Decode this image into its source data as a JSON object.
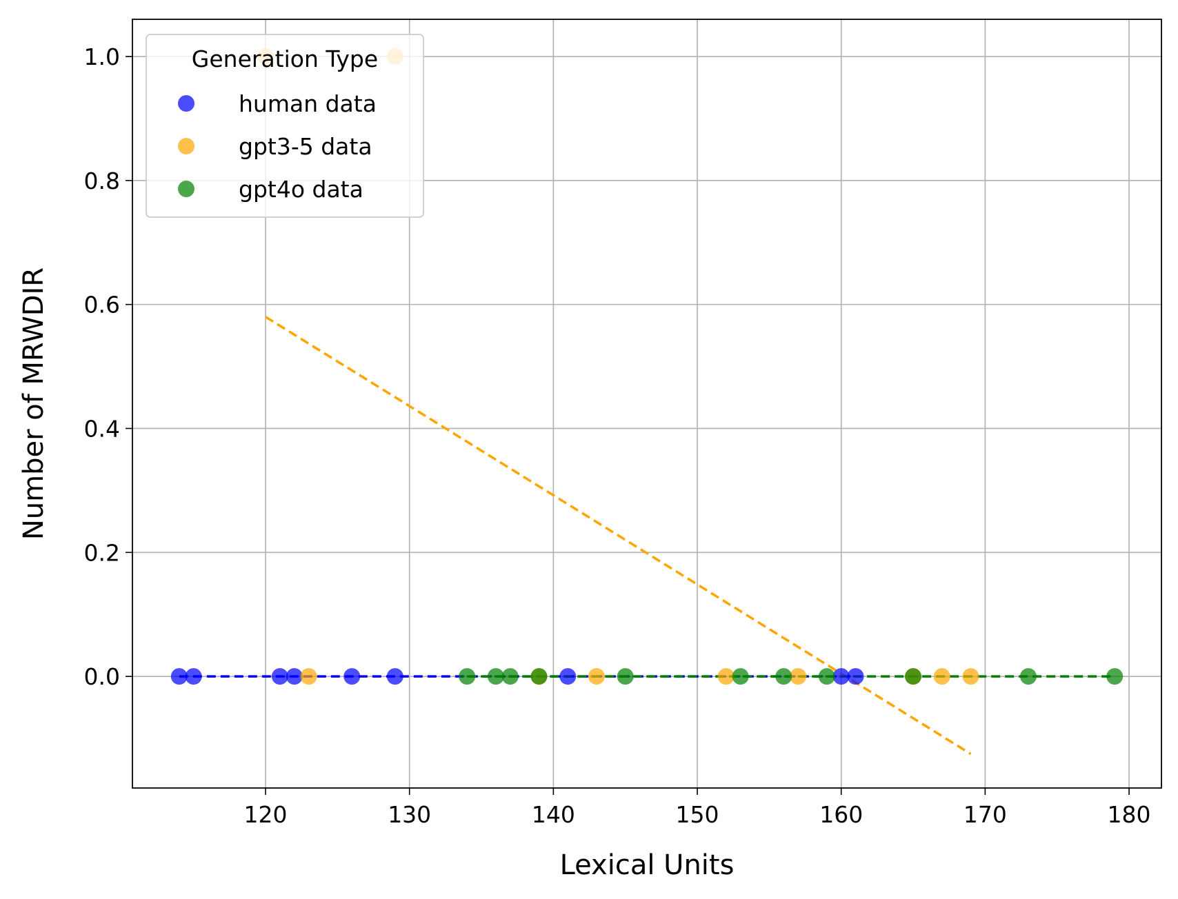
{
  "chart_data": {
    "type": "scatter",
    "title": "",
    "xlabel": "Lexical Units",
    "ylabel": "Number of MRWDIR",
    "xlim": [
      110.75,
      182.25
    ],
    "ylim": [
      -0.18,
      1.06
    ],
    "xticks": [
      120,
      130,
      140,
      150,
      160,
      170,
      180
    ],
    "yticks": [
      0.0,
      0.2,
      0.4,
      0.6,
      0.8,
      1.0
    ],
    "xtick_labels": [
      "120",
      "130",
      "140",
      "150",
      "160",
      "170",
      "180"
    ],
    "ytick_labels": [
      "0.0",
      "0.2",
      "0.4",
      "0.6",
      "0.8",
      "1.0"
    ],
    "grid": true,
    "legend": {
      "title": "Generation Type",
      "placement": "top-left"
    },
    "series": [
      {
        "name": "human data",
        "color": "#0000ff",
        "points": [
          [
            114,
            0
          ],
          [
            115,
            0
          ],
          [
            121,
            0
          ],
          [
            122,
            0
          ],
          [
            126,
            0
          ],
          [
            129,
            0
          ],
          [
            141,
            0
          ],
          [
            160,
            0
          ],
          [
            161,
            0
          ]
        ],
        "trend": {
          "x": [
            114,
            161
          ],
          "y": [
            0,
            0
          ]
        }
      },
      {
        "name": "gpt3-5 data",
        "color": "#ffa500",
        "points": [
          [
            120,
            1
          ],
          [
            129,
            1
          ],
          [
            123,
            0
          ],
          [
            139,
            0
          ],
          [
            143,
            0
          ],
          [
            152,
            0
          ],
          [
            157,
            0
          ],
          [
            165,
            0
          ],
          [
            167,
            0
          ],
          [
            169,
            0
          ]
        ],
        "trend": {
          "x": [
            120,
            169
          ],
          "y": [
            0.58,
            -0.125
          ]
        }
      },
      {
        "name": "gpt4o data",
        "color": "#008000",
        "points": [
          [
            134,
            0
          ],
          [
            136,
            0
          ],
          [
            137,
            0
          ],
          [
            139,
            0
          ],
          [
            145,
            0
          ],
          [
            153,
            0
          ],
          [
            156,
            0
          ],
          [
            159,
            0
          ],
          [
            165,
            0
          ],
          [
            173,
            0
          ],
          [
            179,
            0
          ]
        ],
        "trend": {
          "x": [
            134,
            179
          ],
          "y": [
            0,
            0
          ]
        }
      }
    ]
  }
}
